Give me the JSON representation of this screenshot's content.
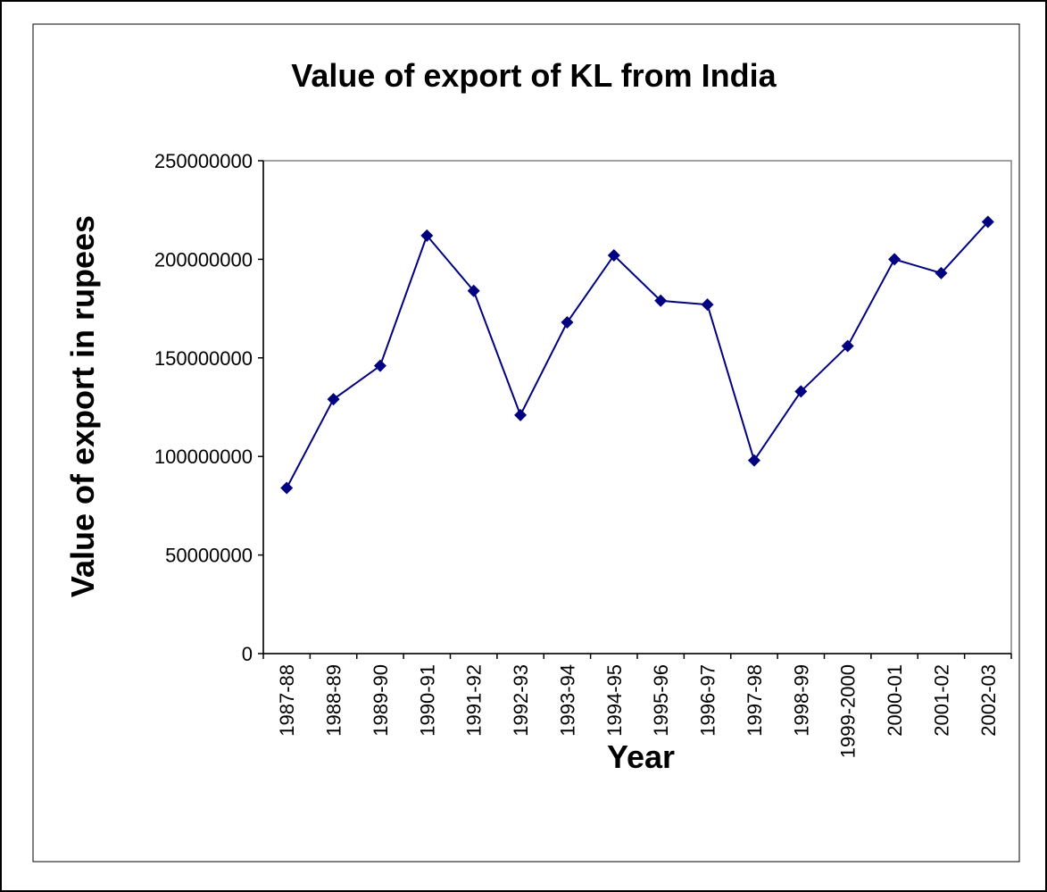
{
  "chart_data": {
    "type": "line",
    "title": "Value of export of KL from India",
    "x_label": "Year",
    "y_label": "Value of export in rupees",
    "categories": [
      "1987-88",
      "1988-89",
      "1989-90",
      "1990-91",
      "1991-92",
      "1992-93",
      "1993-94",
      "1994-95",
      "1995-96",
      "1996-97",
      "1997-98",
      "1998-99",
      "1999-2000",
      "2000-01",
      "2001-02",
      "2002-03"
    ],
    "series": [
      {
        "name": "Value of export",
        "color": "#000080",
        "values": [
          84000000,
          129000000,
          146000000,
          212000000,
          184000000,
          121000000,
          168000000,
          202000000,
          179000000,
          177000000,
          98000000,
          133000000,
          156000000,
          200000000,
          193000000,
          219000000
        ]
      }
    ],
    "ylim": [
      0,
      250000000
    ],
    "yticks": [
      0,
      50000000,
      100000000,
      150000000,
      200000000,
      250000000
    ],
    "grid": false
  }
}
